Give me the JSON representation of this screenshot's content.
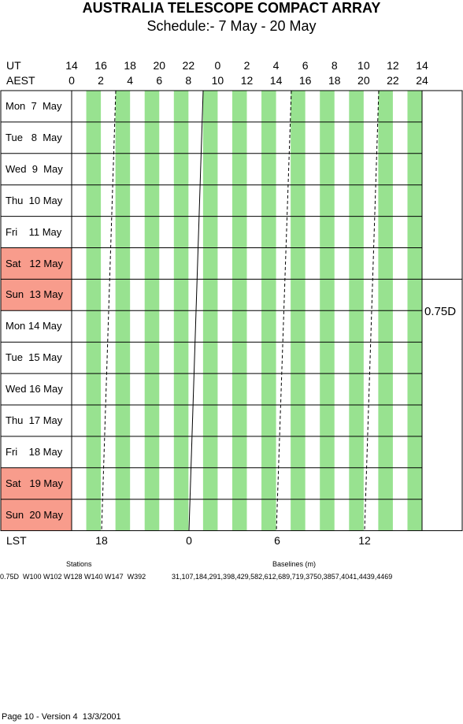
{
  "header": {
    "title": "AUSTRALIA TELESCOPE COMPACT ARRAY",
    "subtitle": "Schedule:- 7  May - 20 May"
  },
  "axes": {
    "ut_label": "UT",
    "aest_label": "AEST",
    "lst_label": "LST",
    "ut_ticks": [
      "14",
      "16",
      "18",
      "20",
      "22",
      "0",
      "2",
      "4",
      "6",
      "8",
      "10",
      "12",
      "14"
    ],
    "aest_ticks": [
      "0",
      "2",
      "4",
      "6",
      "8",
      "10",
      "12",
      "14",
      "16",
      "18",
      "20",
      "22",
      "24"
    ],
    "lst_ticks": [
      "18",
      "0",
      "6",
      "12"
    ]
  },
  "days": [
    {
      "label": "Mon  7  May",
      "weekend": false
    },
    {
      "label": "Tue   8  May",
      "weekend": false
    },
    {
      "label": "Wed  9  May",
      "weekend": false
    },
    {
      "label": "Thu  10 May",
      "weekend": false
    },
    {
      "label": "Fri    11 May",
      "weekend": false
    },
    {
      "label": "Sat   12 May",
      "weekend": true
    },
    {
      "label": "Sun  13 May",
      "weekend": true
    },
    {
      "label": "Mon 14 May",
      "weekend": false
    },
    {
      "label": "Tue  15 May",
      "weekend": false
    },
    {
      "label": "Wed 16 May",
      "weekend": false
    },
    {
      "label": "Thu  17 May",
      "weekend": false
    },
    {
      "label": "Fri    18 May",
      "weekend": false
    },
    {
      "label": "Sat   19 May",
      "weekend": true
    },
    {
      "label": "Sun  20 May",
      "weekend": true
    }
  ],
  "configuration": "0.75D",
  "stations": {
    "heading": "Stations",
    "value": "0.75D  W100 W102 W128 W140 W147  W392"
  },
  "baselines": {
    "heading": "Baselines (m)",
    "value": "31,107,184,291,398,429,582,612,689,719,3750,3857,4041,4439,4469"
  },
  "footer": "Page 10 - Version 4  13/3/2001",
  "colors": {
    "weekend": "#f89c8c",
    "green_band": "#98e290",
    "grid": "#000000"
  }
}
